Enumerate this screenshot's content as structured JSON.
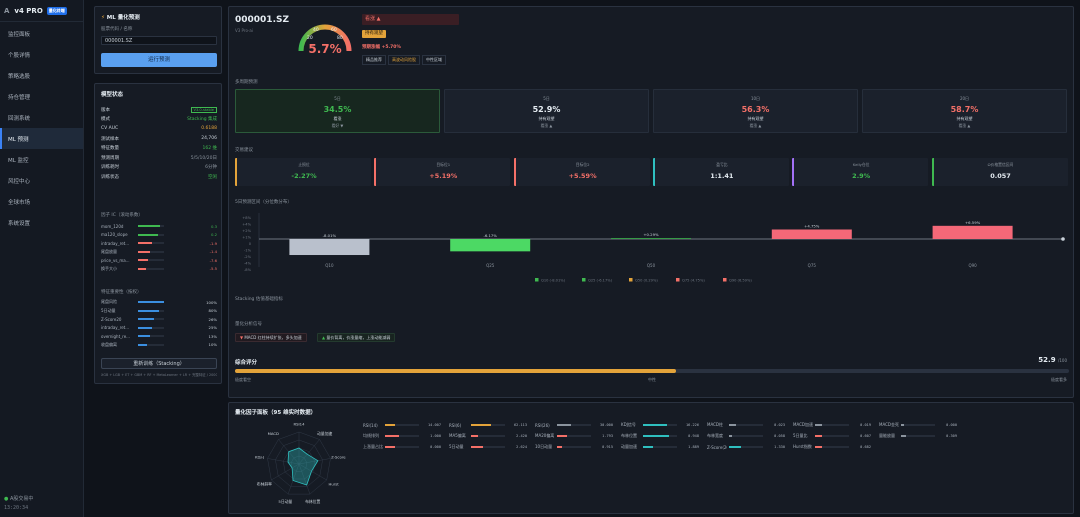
{
  "app": {
    "logo_mark": "A",
    "name": "v4 PRO",
    "badge": "量化终端"
  },
  "nav": [
    "监控面板",
    "个股详情",
    "策略选股",
    "持仓管理",
    "回测系统",
    "ML 预测",
    "ML 监控",
    "风控中心",
    "全球市场",
    "系统设置"
  ],
  "nav_active_index": 5,
  "sidebar_footer": {
    "status": "A股交易中",
    "time": "13:20:34"
  },
  "predict_panel": {
    "title": "ML 量化预测",
    "code_label": "股票代码 / 名称",
    "code_value": "000001.SZ",
    "button": "运行预测"
  },
  "model_status": {
    "title": "模型状态",
    "rows": [
      {
        "k": "版本",
        "v": "V3.0-stable"
      },
      {
        "k": "模式",
        "v": "Stacking 集成"
      },
      {
        "k": "CV AUC",
        "v": "0.6188"
      },
      {
        "k": "测试样本",
        "v": "24,706"
      },
      {
        "k": "特征数量",
        "v": "162 维"
      },
      {
        "k": "预测周期",
        "v": "5/5/10/20日"
      },
      {
        "k": "训练耗时",
        "v": "6分钟"
      },
      {
        "k": "训练状态",
        "v": "空闲"
      }
    ],
    "ic_title": "因子 IC（滚动系数）",
    "ic_factors": [
      {
        "n": "mom_120d",
        "v": "0.3",
        "p": 0.85
      },
      {
        "n": "ma120_slope",
        "v": "0.2",
        "p": 0.75
      },
      {
        "n": "intraday_ret...",
        "v": "-1.9",
        "p": 0.55
      },
      {
        "n": "尾盘放量",
        "v": "-1.4",
        "p": 0.45
      },
      {
        "n": "price_vs_ma...",
        "v": "-7.6",
        "p": 0.4
      },
      {
        "n": "换手大小",
        "v": "-5.5",
        "p": 0.3
      }
    ],
    "imp_title": "特征重要性（按权）",
    "imp_factors": [
      {
        "n": "尾盘风险",
        "v": "100%",
        "p": 1.0
      },
      {
        "n": "5日动量",
        "v": "80%",
        "p": 0.8
      },
      {
        "n": "Z-Score20",
        "v": "26%",
        "p": 0.6
      },
      {
        "n": "intraday_ret...",
        "v": "25%",
        "p": 0.55
      },
      {
        "n": "overnight_re...",
        "v": "13%",
        "p": 0.45
      },
      {
        "n": "收盘偏离",
        "v": "10%",
        "p": 0.35
      }
    ],
    "retrain_button": "重新训练（Stacking）",
    "footnote": "XGB + LGB + ET + GBM + RF + MetaLearner + LR + 完整特征 / 2000只训练股票池"
  },
  "header": {
    "symbol": "000001.SZ",
    "sub": "V3 Pro-ai",
    "gauge_value": "5.7%",
    "gauge_ticks": [
      "40",
      "60",
      "20",
      "80"
    ],
    "signal": "看涨 ▲",
    "hold_tag": "持有观望",
    "expected": "预期涨幅 +5.70%",
    "tags": [
      "精品推荐",
      "高波动风险股",
      "中性区域"
    ]
  },
  "multi_period": {
    "label": "多周期预测",
    "cards": [
      {
        "t": "5日",
        "b": "34.5%",
        "s": "看涨",
        "s2": "看好 ▼",
        "color": "#3fb950"
      },
      {
        "t": "5日",
        "b": "52.9%",
        "s": "持有观望",
        "s2": "看涨 ▲",
        "color": "#e6edf3"
      },
      {
        "t": "10日",
        "b": "56.3%",
        "s": "持有观望",
        "s2": "看涨 ▲",
        "color": "#f47068"
      },
      {
        "t": "20日",
        "b": "58.7%",
        "s": "持有观望",
        "s2": "看涨 ▲",
        "color": "#f47068"
      }
    ]
  },
  "trade_advice": {
    "label": "交易建议",
    "cards": [
      {
        "t": "止损位",
        "b": "-2.27%",
        "color": "#3fb950",
        "edge": "#e3a33a"
      },
      {
        "t": "目标位1",
        "b": "+5.19%",
        "color": "#f47068",
        "edge": "#f47068"
      },
      {
        "t": "目标位2",
        "b": "+5.59%",
        "color": "#f47068",
        "edge": "#f47068"
      },
      {
        "t": "盈亏比",
        "b": "1:1.41",
        "color": "#e6edf3",
        "edge": "#2fbfbf"
      },
      {
        "t": "Kelly仓位",
        "b": "2.9%",
        "color": "#3fb950",
        "edge": "#a371f7"
      },
      {
        "t": "Ω价格置信区间",
        "b": "0.057",
        "color": "#e6edf3",
        "edge": "#3fb950"
      }
    ]
  },
  "chart_data": {
    "type": "bar",
    "label": "5日预测区间（分位数分布）",
    "categories": [
      "Q10",
      "Q25",
      "Q50",
      "Q75",
      "Q90"
    ],
    "values": [
      -8.01,
      -6.17,
      0.29,
      4.75,
      6.59
    ],
    "value_labels": [
      "-8.01%",
      "-6.17%",
      "+0.29%",
      "+4.75%",
      "+6.59%"
    ],
    "yticks": [
      "+8%",
      "+4%",
      "+2%",
      "+1%",
      "0",
      "-1%",
      "-2%",
      "-4%",
      "-8%"
    ],
    "colors": [
      "#b9c0cc",
      "#4cd964",
      "#3fb950",
      "#f46878",
      "#f46878"
    ],
    "legend": [
      "Q10 (-8.01%)",
      "Q25 (-6.17%)",
      "Q50 (0.29%)",
      "Q75 (4.75%)",
      "Q90 (6.59%)"
    ],
    "legend_colors": [
      "#3fb950",
      "#3fb950",
      "#e3a33a",
      "#f47068",
      "#f47068"
    ]
  },
  "stacking_label": "Stacking 估值基础指标",
  "analysis": {
    "label": "量化分析信号",
    "tag1": "MACD 红柱持续扩张，多头加速",
    "tag2": "量价背离，价涨量缩，上涨动能减弱"
  },
  "score": {
    "label": "综合评分",
    "value": "52.9",
    "unit": "/100",
    "fraction": 0.529,
    "left": "极度看空",
    "mid": "中性",
    "right": "极度看多"
  },
  "factor_panel": {
    "title": "量化因子面板（95 维实时数据）",
    "radar_labels": [
      "RSI14",
      "动量加速",
      "Z-Score",
      "Hurst",
      "布林位置",
      "5日动量",
      "布林斜率",
      "KDJ-J",
      "MACD"
    ],
    "cells": [
      {
        "n": "RSI(14)",
        "v": "14.007",
        "p": 0.3,
        "c": "#e3a33a"
      },
      {
        "n": "RSI(6)",
        "v": "62.113",
        "p": 0.6,
        "c": "#e3a33a"
      },
      {
        "n": "RSI(26)",
        "v": "30.000",
        "p": 0.4,
        "c": "#8b949e"
      },
      {
        "n": "KDJ信号",
        "v": "16.226",
        "p": 0.7,
        "c": "#2fbfbf"
      },
      {
        "n": "MACD柱",
        "v": "0.023",
        "p": 0.2,
        "c": "#8b949e"
      },
      {
        "n": "MACD加速",
        "v": "0.019",
        "p": 0.2,
        "c": "#8b949e"
      },
      {
        "n": "MACD金死叉",
        "v": "0.000",
        "p": 0.1,
        "c": "#8b949e"
      },
      {
        "n": "均线排列",
        "v": "1.000",
        "p": 0.4,
        "c": "#f47068"
      },
      {
        "n": "MA5偏离",
        "v": "2.420",
        "p": 0.2,
        "c": "#f47068"
      },
      {
        "n": "MA20偏离",
        "v": "1.793",
        "p": 0.3,
        "c": "#f47068"
      },
      {
        "n": "布林位置",
        "v": "0.948",
        "p": 0.75,
        "c": "#2fbfbf"
      },
      {
        "n": "布林宽度",
        "v": "0.058",
        "p": 0.1,
        "c": "#8b949e"
      },
      {
        "n": "5日量比",
        "v": "0.607",
        "p": 0.2,
        "c": "#f47068"
      },
      {
        "n": "量能放量",
        "v": "0.309",
        "p": 0.15,
        "c": "#8b949e"
      },
      {
        "n": "上涨量占比",
        "v": "0.000",
        "p": 0.3,
        "c": "#f47068"
      },
      {
        "n": "5日动量",
        "v": "2.624",
        "p": 0.35,
        "c": "#f47068"
      },
      {
        "n": "10日动量",
        "v": "0.915",
        "p": 0.15,
        "c": "#f47068"
      },
      {
        "n": "动量加速",
        "v": "1.889",
        "p": 0.3,
        "c": "#2fbfbf"
      },
      {
        "n": "Z-Score(20)",
        "v": "1.330",
        "p": 0.35,
        "c": "#2fbfbf"
      },
      {
        "n": "Hurst指数",
        "v": "0.682",
        "p": 0.2,
        "c": "#f47068"
      }
    ]
  }
}
